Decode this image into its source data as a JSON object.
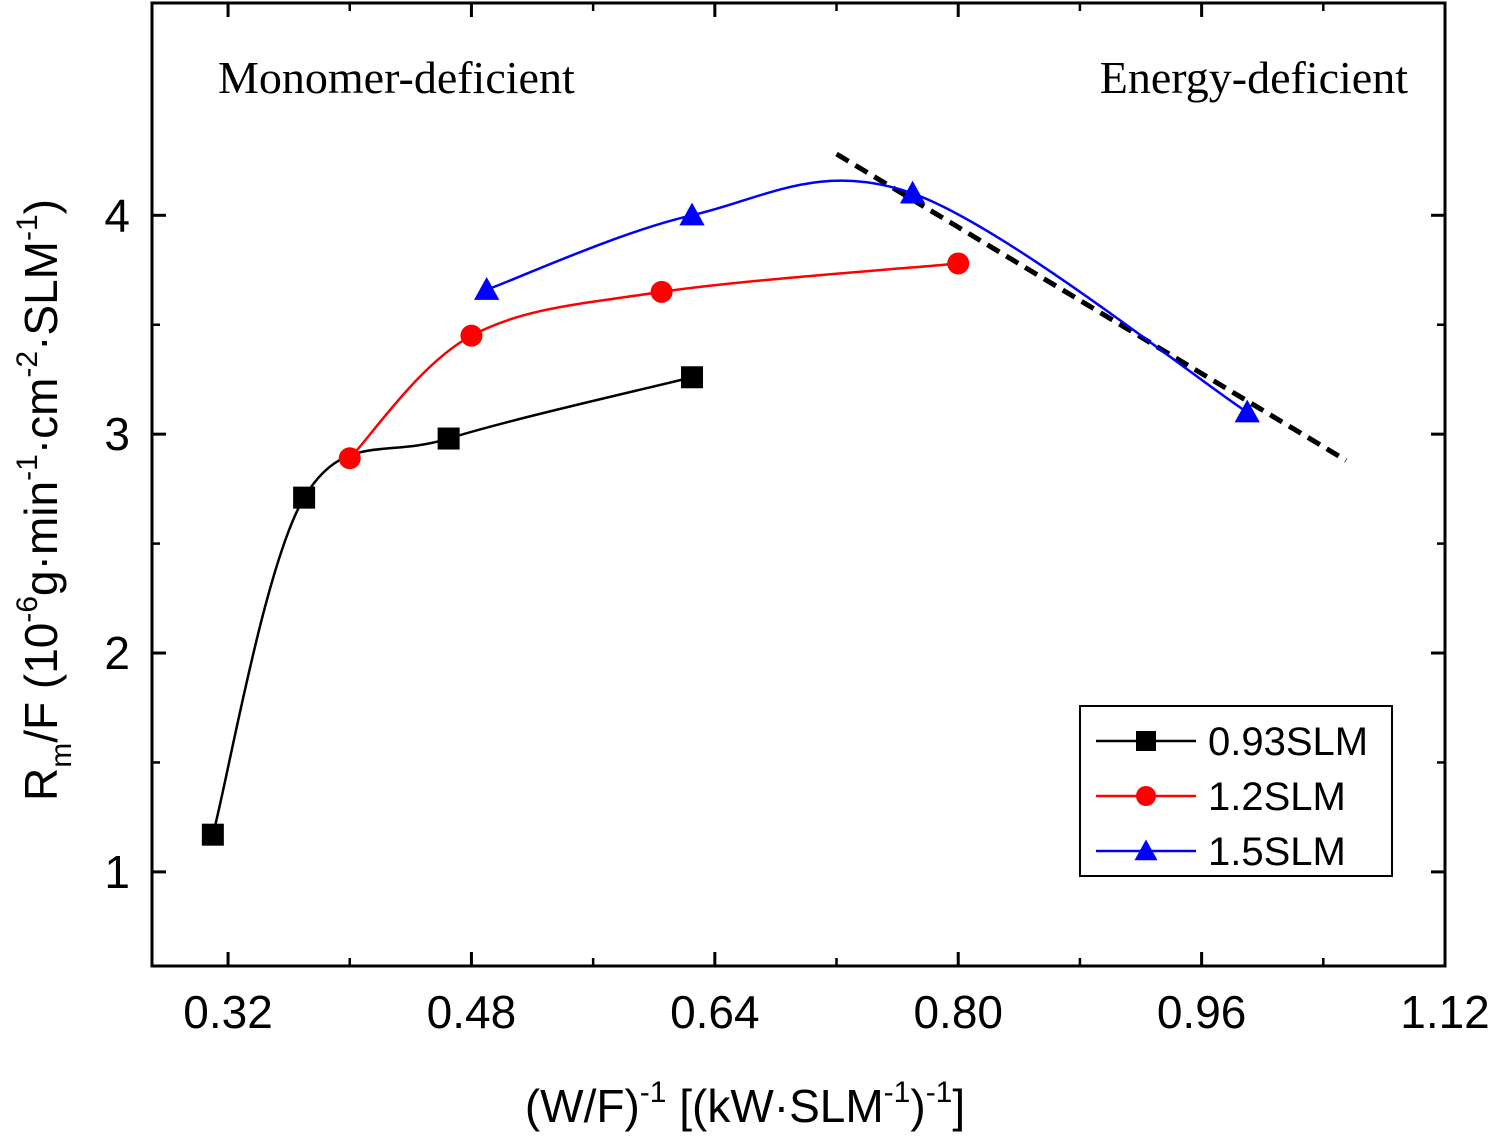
{
  "chart_data": {
    "type": "line",
    "xlabel": {
      "main": "(W/F)",
      "sup1": "-1",
      "mid": " [(kW·SLM",
      "sup2": "-1",
      "end": ")",
      "sup3": "-1",
      "tail": "]"
    },
    "ylabel": {
      "main": "R",
      "sub": "m",
      "mid1": "/F (10",
      "sup1": "-6",
      "mid2": "g·min",
      "sup2": "-1",
      "mid3": "·cm",
      "sup3": "-2",
      "mid4": "·SLM",
      "sup4": "-1",
      "end": ")"
    },
    "xlim": [
      0.27,
      1.12
    ],
    "ylim": [
      0.57,
      4.97
    ],
    "x_ticks": [
      {
        "value": 0.32,
        "label": "0.32"
      },
      {
        "value": 0.48,
        "label": "0.48"
      },
      {
        "value": 0.64,
        "label": "0.64"
      },
      {
        "value": 0.8,
        "label": "0.80"
      },
      {
        "value": 0.96,
        "label": "0.96"
      },
      {
        "value": 1.12,
        "label": "1.12"
      }
    ],
    "x_minor_ticks": [
      0.4,
      0.56,
      0.72,
      0.88,
      1.04
    ],
    "y_ticks": [
      {
        "value": 1,
        "label": "1"
      },
      {
        "value": 2,
        "label": "2"
      },
      {
        "value": 3,
        "label": "3"
      },
      {
        "value": 4,
        "label": "4"
      }
    ],
    "y_minor_ticks": [
      1.5,
      2.5,
      3.5
    ],
    "series": [
      {
        "name": "0.93SLM",
        "color": "#000000",
        "marker": "square",
        "points": [
          [
            0.31,
            1.17
          ],
          [
            0.37,
            2.71
          ],
          [
            0.465,
            2.98
          ],
          [
            0.625,
            3.26
          ]
        ]
      },
      {
        "name": "1.2SLM",
        "color": "#ff0000",
        "marker": "circle",
        "points": [
          [
            0.4,
            2.89
          ],
          [
            0.48,
            3.45
          ],
          [
            0.605,
            3.65
          ],
          [
            0.8,
            3.78
          ]
        ]
      },
      {
        "name": "1.5SLM",
        "color": "#0000ff",
        "marker": "triangle",
        "points": [
          [
            0.49,
            3.66
          ],
          [
            0.625,
            4.0
          ],
          [
            0.77,
            4.1
          ],
          [
            0.99,
            3.1
          ]
        ]
      }
    ],
    "fit_line": {
      "style": "dashed",
      "color": "#000000",
      "points": [
        [
          0.72,
          4.28
        ],
        [
          1.055,
          2.88
        ]
      ]
    },
    "annotations": [
      {
        "text": "Monomer-deficient"
      },
      {
        "text": "Energy-deficient"
      }
    ],
    "legend_position": "bottom-right"
  }
}
